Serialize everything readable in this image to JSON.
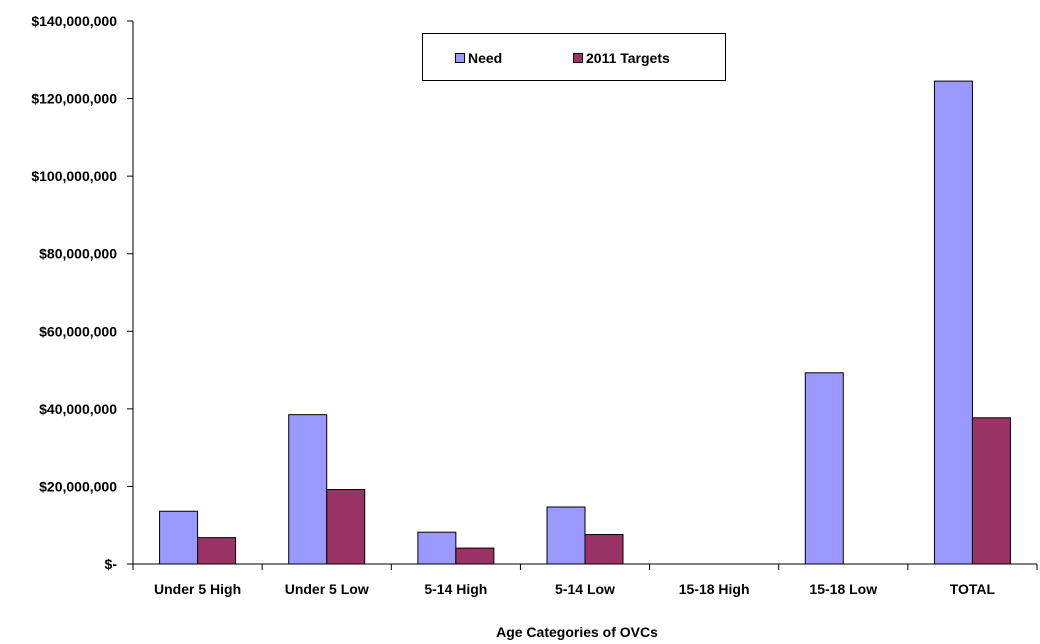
{
  "chart_data": {
    "type": "bar",
    "xlabel": "Age Categories of OVCs",
    "ylabel": "",
    "categories": [
      "Under 5 High",
      "Under 5 Low",
      "5-14 High",
      "5-14 Low",
      "15-18 High",
      "15-18 Low",
      "TOTAL"
    ],
    "series": [
      {
        "name": "Need",
        "color": "#9999ff",
        "values": [
          13600000,
          38500000,
          8200000,
          14700000,
          0,
          49300000,
          124500000
        ]
      },
      {
        "name": "2011 Targets",
        "color": "#993366",
        "values": [
          6800000,
          19200000,
          4100000,
          7600000,
          0,
          0,
          37700000
        ]
      }
    ],
    "ylim": [
      0,
      140000000
    ],
    "yticks": [
      0,
      20000000,
      40000000,
      60000000,
      80000000,
      100000000,
      120000000,
      140000000
    ],
    "ytick_labels": [
      "$-",
      "$20,000,000",
      "$40,000,000",
      "$60,000,000",
      "$80,000,000",
      "$100,000,000",
      "$120,000,000",
      "$140,000,000"
    ],
    "grid": false,
    "legend_position": "top-center"
  }
}
